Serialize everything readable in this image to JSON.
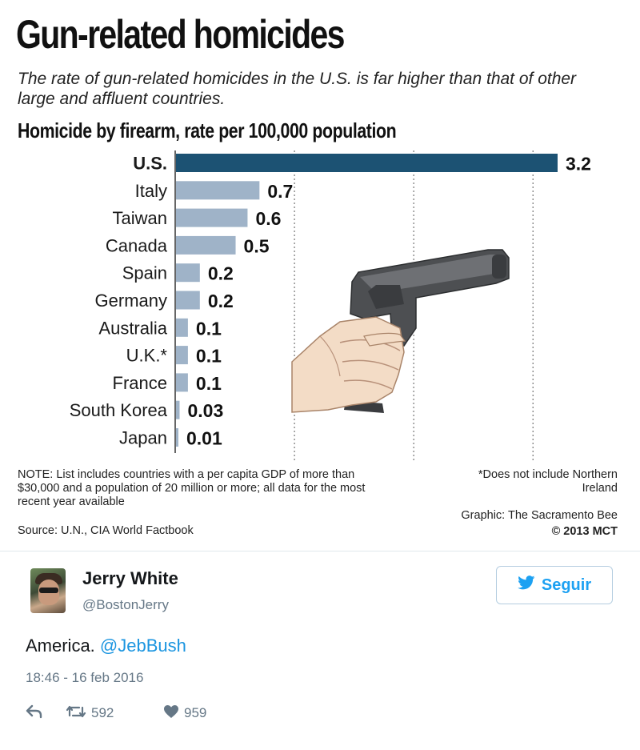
{
  "infographic": {
    "title": "Gun-related homicides",
    "subtitle": "The rate of gun-related homicides in the U.S. is far higher than that of other large and affluent countries.",
    "chart_heading": "Homicide by firearm, rate per 100,000 population",
    "note": "NOTE: List includes countries with a per capita GDP of more than $30,000 and a population of 20 million or more; all data for the most recent year available",
    "source": "Source: U.N., CIA World Factbook",
    "footnote": "*Does not include Northern Ireland",
    "credit": "Graphic: The Sacramento Bee",
    "copyright": "© 2013 MCT"
  },
  "chart_data": {
    "type": "bar",
    "orientation": "horizontal",
    "title": "Homicide by firearm, rate per 100,000 population",
    "categories": [
      "U.S.",
      "Italy",
      "Taiwan",
      "Canada",
      "Spain",
      "Germany",
      "Australia",
      "U.K.*",
      "France",
      "South Korea",
      "Japan"
    ],
    "values": [
      3.2,
      0.7,
      0.6,
      0.5,
      0.2,
      0.2,
      0.1,
      0.1,
      0.1,
      0.03,
      0.01
    ],
    "value_labels": [
      "3.2",
      "0.7",
      "0.6",
      "0.5",
      "0.2",
      "0.2",
      "0.1",
      "0.1",
      "0.1",
      "0.03",
      "0.01"
    ],
    "xlim": [
      0,
      3.2
    ],
    "grid": true,
    "gridlines_at": [
      1,
      2,
      3
    ],
    "colors": {
      "highlight": "#1c5273",
      "bar": "#9fb3c8",
      "grid": "#555555"
    },
    "highlight_category": "U.S."
  },
  "tweet": {
    "name": "Jerry White",
    "handle": "@BostonJerry",
    "follow_label": "Seguir",
    "text": "America. ",
    "mention": "@JebBush",
    "timestamp": "18:46 - 16 feb 2016",
    "retweets": "592",
    "likes": "959",
    "colors": {
      "link": "#1b95e0",
      "twitter_blue": "#1da1f2",
      "muted": "#657786"
    },
    "icons": [
      "reply-icon",
      "retweet-icon",
      "heart-icon",
      "twitter-bird-icon"
    ]
  }
}
